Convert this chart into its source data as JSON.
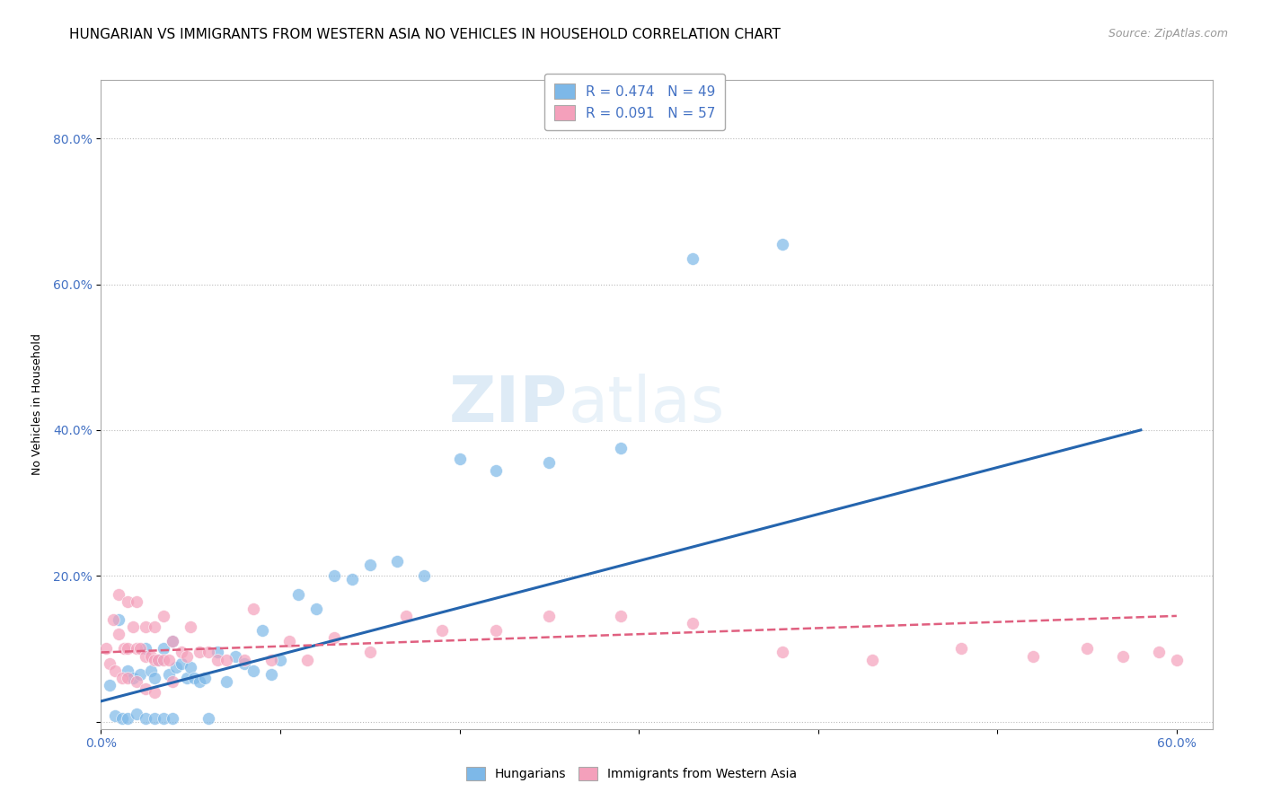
{
  "title": "HUNGARIAN VS IMMIGRANTS FROM WESTERN ASIA NO VEHICLES IN HOUSEHOLD CORRELATION CHART",
  "source": "Source: ZipAtlas.com",
  "ylabel": "No Vehicles in Household",
  "xlabel": "",
  "xlim": [
    0.0,
    0.62
  ],
  "ylim": [
    -0.01,
    0.88
  ],
  "xticks": [
    0.0,
    0.1,
    0.2,
    0.3,
    0.4,
    0.5,
    0.6
  ],
  "xticklabels": [
    "0.0%",
    "",
    "",
    "",
    "",
    "",
    "60.0%"
  ],
  "yticks": [
    0.0,
    0.2,
    0.4,
    0.6,
    0.8
  ],
  "yticklabels": [
    "",
    "20.0%",
    "40.0%",
    "60.0%",
    "80.0%"
  ],
  "legend1_r": "R = 0.474",
  "legend1_n": "N = 49",
  "legend2_r": "R = 0.091",
  "legend2_n": "N = 57",
  "blue_color": "#7db8e8",
  "pink_color": "#f4a0bb",
  "blue_line_color": "#2565ae",
  "pink_line_color": "#e06080",
  "watermark_text": "ZIP",
  "watermark_text2": "atlas",
  "blue_x": [
    0.005,
    0.008,
    0.01,
    0.012,
    0.015,
    0.015,
    0.018,
    0.02,
    0.022,
    0.025,
    0.025,
    0.028,
    0.03,
    0.03,
    0.032,
    0.035,
    0.035,
    0.038,
    0.04,
    0.04,
    0.042,
    0.045,
    0.048,
    0.05,
    0.052,
    0.055,
    0.058,
    0.06,
    0.065,
    0.07,
    0.075,
    0.08,
    0.085,
    0.09,
    0.095,
    0.1,
    0.11,
    0.12,
    0.13,
    0.14,
    0.15,
    0.165,
    0.18,
    0.2,
    0.22,
    0.25,
    0.29,
    0.33,
    0.38
  ],
  "blue_y": [
    0.05,
    0.008,
    0.14,
    0.005,
    0.07,
    0.005,
    0.06,
    0.01,
    0.065,
    0.1,
    0.005,
    0.07,
    0.06,
    0.005,
    0.085,
    0.1,
    0.005,
    0.065,
    0.11,
    0.005,
    0.075,
    0.08,
    0.06,
    0.075,
    0.06,
    0.055,
    0.06,
    0.005,
    0.095,
    0.055,
    0.09,
    0.08,
    0.07,
    0.125,
    0.065,
    0.085,
    0.175,
    0.155,
    0.2,
    0.195,
    0.215,
    0.22,
    0.2,
    0.36,
    0.345,
    0.355,
    0.375,
    0.635,
    0.655
  ],
  "pink_x": [
    0.003,
    0.005,
    0.007,
    0.008,
    0.01,
    0.01,
    0.012,
    0.013,
    0.015,
    0.015,
    0.015,
    0.018,
    0.02,
    0.02,
    0.02,
    0.022,
    0.025,
    0.025,
    0.025,
    0.028,
    0.03,
    0.03,
    0.03,
    0.032,
    0.035,
    0.035,
    0.038,
    0.04,
    0.04,
    0.045,
    0.048,
    0.05,
    0.055,
    0.06,
    0.065,
    0.07,
    0.08,
    0.085,
    0.095,
    0.105,
    0.115,
    0.13,
    0.15,
    0.17,
    0.19,
    0.22,
    0.25,
    0.29,
    0.33,
    0.38,
    0.43,
    0.48,
    0.52,
    0.55,
    0.57,
    0.59,
    0.6
  ],
  "pink_y": [
    0.1,
    0.08,
    0.14,
    0.07,
    0.175,
    0.12,
    0.06,
    0.1,
    0.165,
    0.1,
    0.06,
    0.13,
    0.165,
    0.1,
    0.055,
    0.1,
    0.13,
    0.09,
    0.045,
    0.09,
    0.13,
    0.085,
    0.04,
    0.085,
    0.145,
    0.085,
    0.085,
    0.11,
    0.055,
    0.095,
    0.09,
    0.13,
    0.095,
    0.095,
    0.085,
    0.085,
    0.085,
    0.155,
    0.085,
    0.11,
    0.085,
    0.115,
    0.095,
    0.145,
    0.125,
    0.125,
    0.145,
    0.145,
    0.135,
    0.095,
    0.085,
    0.1,
    0.09,
    0.1,
    0.09,
    0.095,
    0.085
  ],
  "blue_line_x": [
    0.0,
    0.58
  ],
  "blue_line_y": [
    0.028,
    0.4
  ],
  "pink_line_x": [
    0.0,
    0.6
  ],
  "pink_line_y": [
    0.095,
    0.145
  ],
  "title_fontsize": 11,
  "axis_fontsize": 10,
  "label_fontsize": 9,
  "source_fontsize": 9
}
